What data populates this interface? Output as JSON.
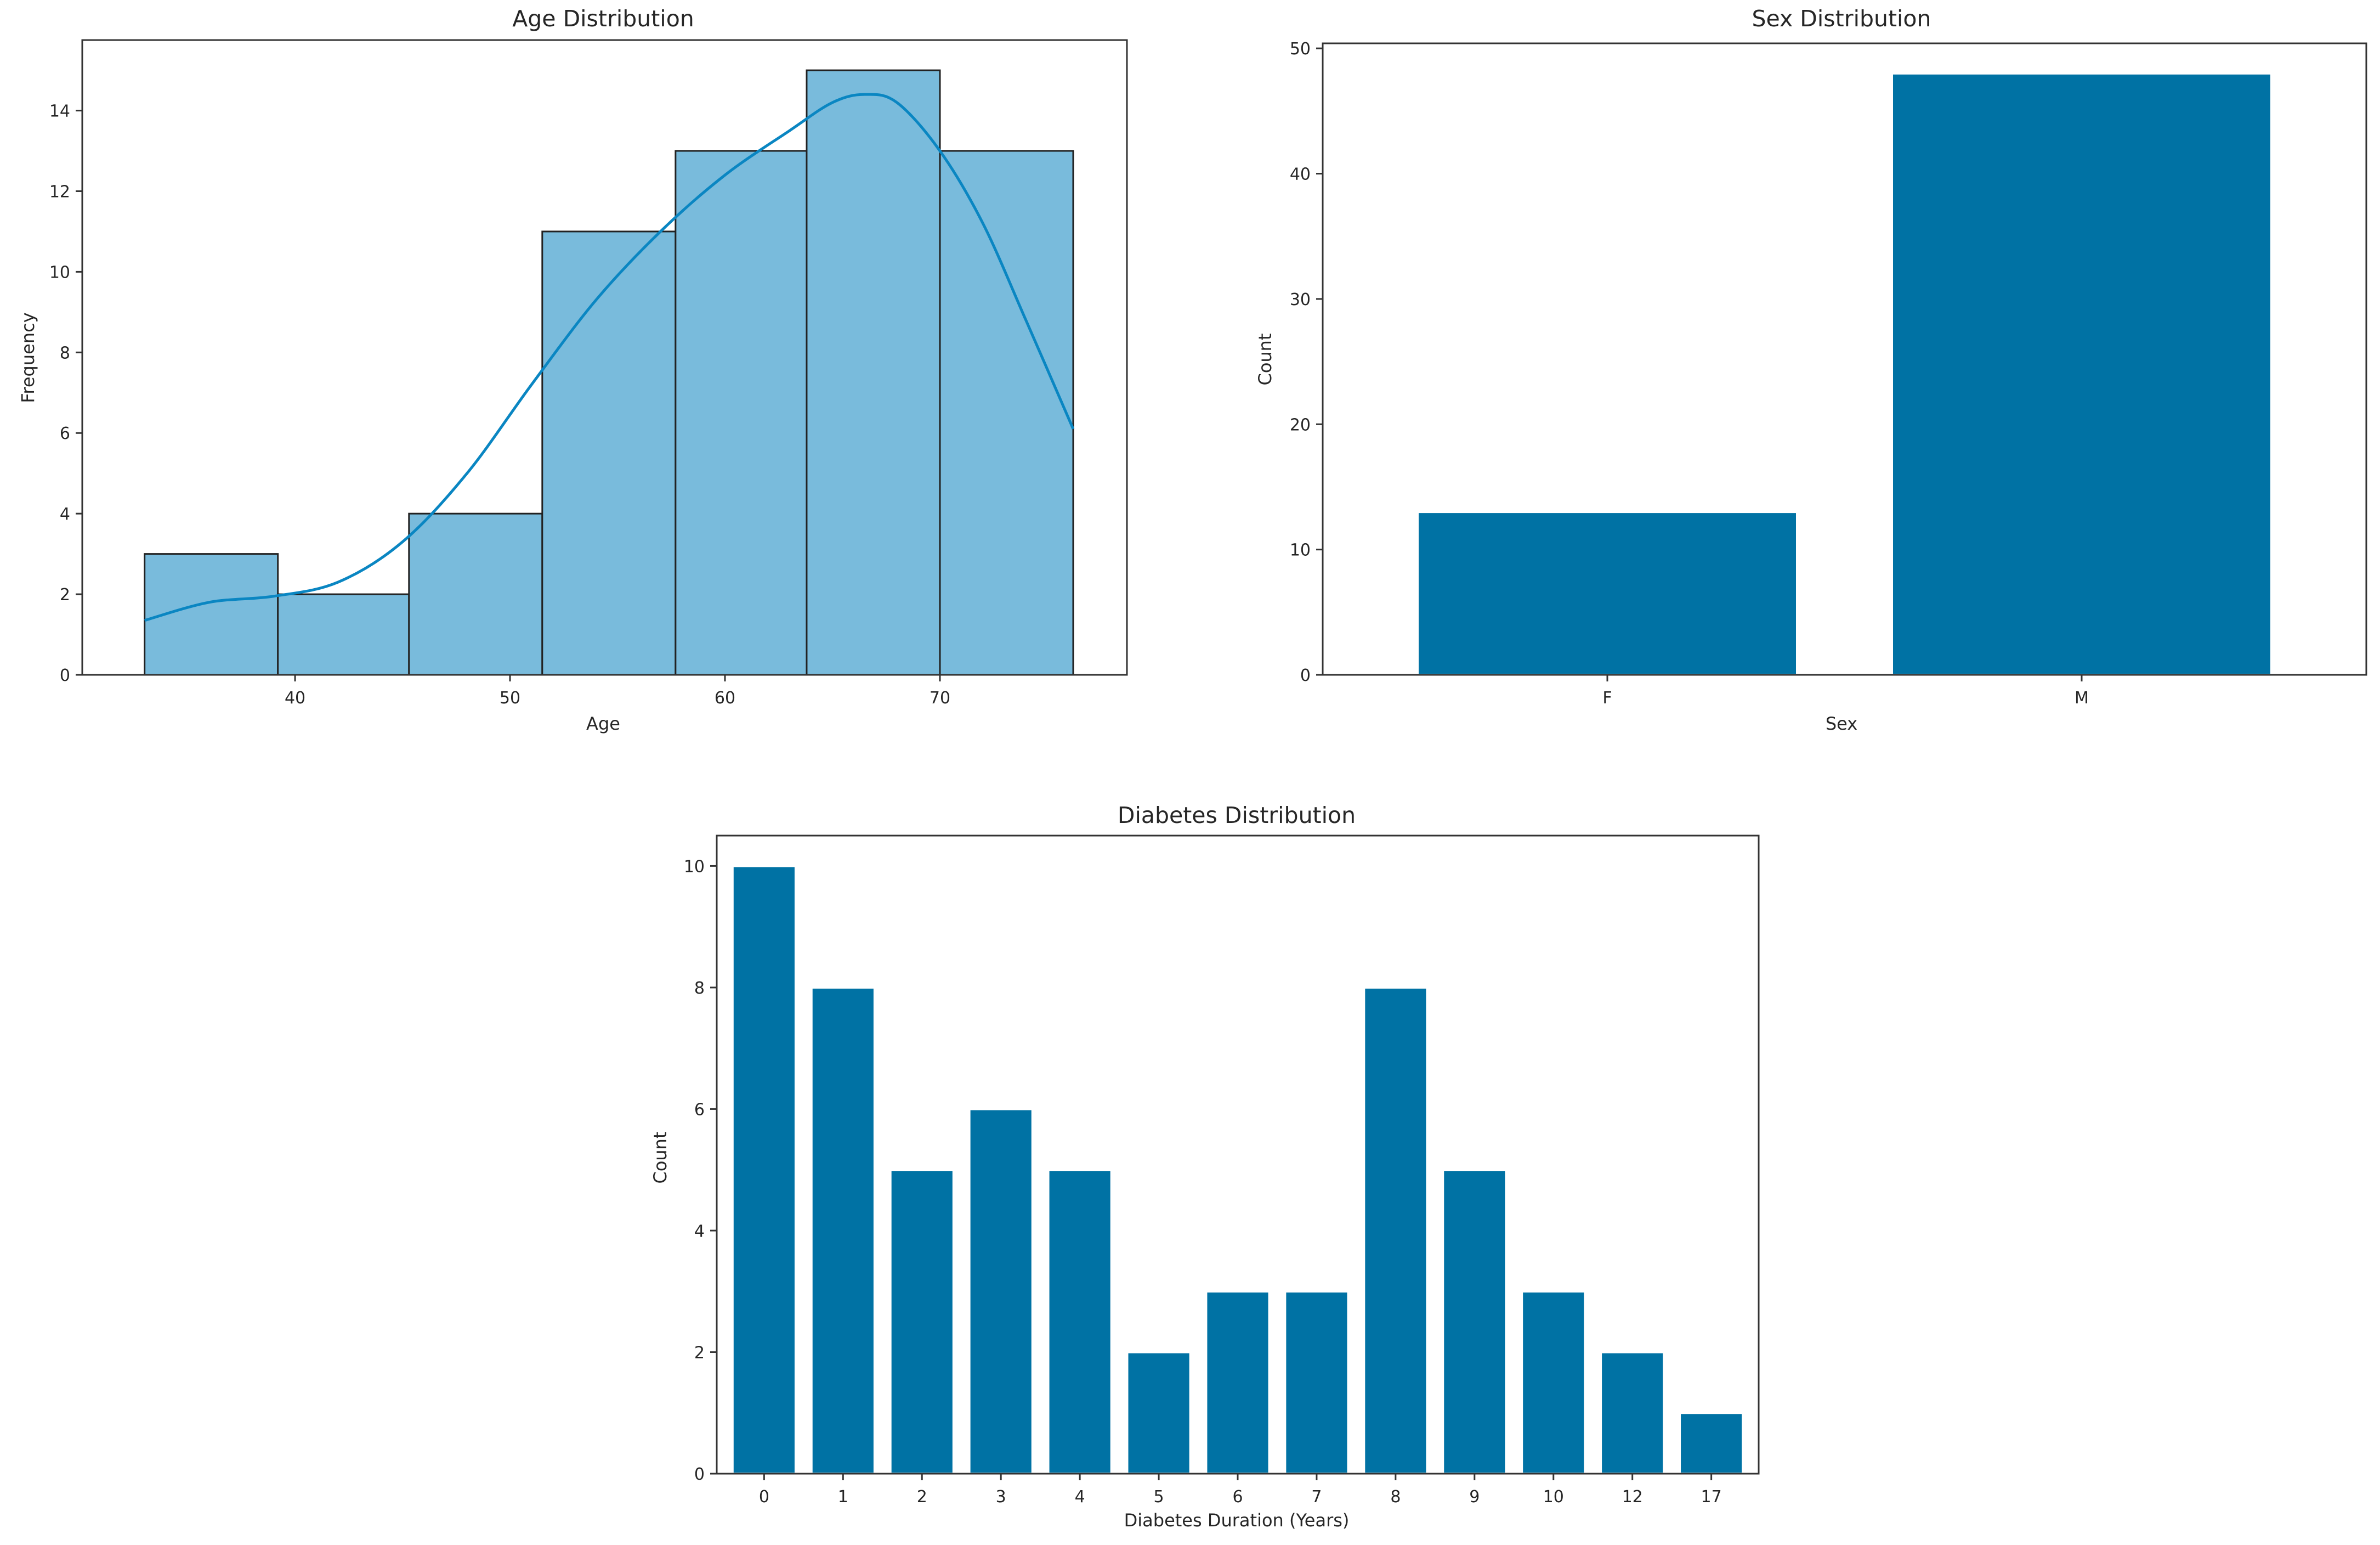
{
  "colors": {
    "hist_fill": "#79bbdc",
    "hist_edge": "#222222",
    "kde_line": "#0a86c2",
    "bar_fill": "#0072a4",
    "axis": "#333333",
    "text": "#262626"
  },
  "chart_data": [
    {
      "type": "bar",
      "variant": "histogram-with-kde",
      "title": "Age Distribution",
      "xlabel": "Age",
      "ylabel": "Frequency",
      "xlim": [
        30.1,
        78.7
      ],
      "ylim": [
        0,
        15.75
      ],
      "xticks": [
        40,
        50,
        60,
        70
      ],
      "yticks": [
        0,
        2,
        4,
        6,
        8,
        10,
        12,
        14
      ],
      "bin_edges": [
        33,
        39.2,
        45.3,
        51.5,
        57.7,
        63.8,
        70,
        76.2
      ],
      "values": [
        3,
        2,
        4,
        11,
        13,
        15,
        13
      ],
      "kde": {
        "x": [
          33,
          36,
          39,
          42,
          45,
          48,
          51,
          54,
          57,
          60,
          63,
          65,
          66.5,
          68,
          70,
          72,
          74,
          76.2
        ],
        "y": [
          1.35,
          1.8,
          1.95,
          2.3,
          3.3,
          5.0,
          7.2,
          9.3,
          11.0,
          12.4,
          13.5,
          14.2,
          14.4,
          14.2,
          13.0,
          11.2,
          8.8,
          6.1
        ]
      },
      "grid": false
    },
    {
      "type": "bar",
      "title": "Sex Distribution",
      "xlabel": "Sex",
      "ylabel": "Count",
      "categories": [
        "F",
        "M"
      ],
      "values": [
        13,
        48
      ],
      "ylim": [
        0,
        50.4
      ],
      "yticks": [
        0,
        10,
        20,
        30,
        40,
        50
      ],
      "grid": false
    },
    {
      "type": "bar",
      "title": "Diabetes Distribution",
      "xlabel": "Diabetes Duration (Years)",
      "ylabel": "Count",
      "categories": [
        "0",
        "1",
        "2",
        "3",
        "4",
        "5",
        "6",
        "7",
        "8",
        "9",
        "10",
        "12",
        "17"
      ],
      "values": [
        10,
        8,
        5,
        6,
        5,
        2,
        3,
        3,
        8,
        5,
        3,
        2,
        1
      ],
      "ylim": [
        0,
        10.5
      ],
      "yticks": [
        0,
        2,
        4,
        6,
        8,
        10
      ],
      "grid": false
    }
  ]
}
